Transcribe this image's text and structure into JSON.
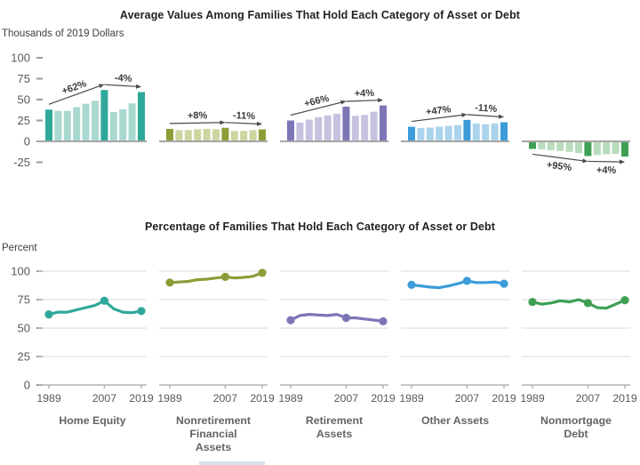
{
  "chart_data": [
    {
      "type": "bar",
      "panel": "top",
      "title": "Average Values Among Families That Hold Each Category of Asset or Debt",
      "unit_label": "Thousands of 2019 Dollars",
      "y_ticks": [
        100,
        75,
        50,
        25,
        0,
        -25
      ],
      "ylim": [
        -25,
        100
      ],
      "years": [
        1989,
        1992,
        1995,
        1998,
        2001,
        2004,
        2007,
        2010,
        2013,
        2016,
        2019
      ],
      "highlight_years": [
        1989,
        2007,
        2019
      ],
      "grid": false,
      "groups": [
        {
          "name": "Home Equity",
          "color_dark": "#2fa89a",
          "color_light": "#a9d8d0",
          "values": [
            38,
            36.5,
            36.5,
            41,
            45,
            48.5,
            61.5,
            35,
            38.5,
            45.5,
            59
          ],
          "changes": [
            {
              "from": 1989,
              "to": 2007,
              "label": "+62%"
            },
            {
              "from": 2007,
              "to": 2019,
              "label": "-4%"
            }
          ]
        },
        {
          "name": "Nonretirement Financial Assets",
          "color_dark": "#8e9c38",
          "color_light": "#cdd5a0",
          "values": [
            15,
            13.5,
            13.5,
            14.5,
            15,
            14.5,
            16.2,
            12.5,
            12.5,
            13.5,
            14.4
          ],
          "changes": [
            {
              "from": 1989,
              "to": 2007,
              "label": "+8%"
            },
            {
              "from": 2007,
              "to": 2019,
              "label": "-11%"
            }
          ]
        },
        {
          "name": "Retirement Assets",
          "color_dark": "#7c76b7",
          "color_light": "#c6c3e0",
          "values": [
            25,
            22.5,
            26,
            29,
            31,
            33,
            41.5,
            30.5,
            31.5,
            35.5,
            43
          ],
          "changes": [
            {
              "from": 1989,
              "to": 2007,
              "label": "+66%"
            },
            {
              "from": 2007,
              "to": 2019,
              "label": "+4%"
            }
          ]
        },
        {
          "name": "Other Assets",
          "color_dark": "#3b9cd9",
          "color_light": "#abd4ec",
          "values": [
            17.5,
            16,
            16.5,
            17.5,
            18.5,
            19.5,
            25.7,
            21.5,
            20.5,
            21.5,
            22.9
          ],
          "changes": [
            {
              "from": 1989,
              "to": 2007,
              "label": "+47%"
            },
            {
              "from": 2007,
              "to": 2019,
              "label": "-11%"
            }
          ]
        },
        {
          "name": "Nonmortgage Debt",
          "color_dark": "#3fa055",
          "color_light": "#b8dcbc",
          "values": [
            -9,
            -9.5,
            -10.5,
            -11.5,
            -12.5,
            -14,
            -17.5,
            -16.5,
            -15.5,
            -15,
            -18.2
          ],
          "changes": [
            {
              "from": 1989,
              "to": 2007,
              "label": "+95%"
            },
            {
              "from": 2007,
              "to": 2019,
              "label": "+4%"
            }
          ]
        }
      ]
    },
    {
      "type": "line",
      "panel": "bottom",
      "title": "Percentage of Families That Hold Each Category of Asset or Debt",
      "unit_label": "Percent",
      "y_ticks": [
        100,
        75,
        50,
        25,
        0
      ],
      "ylim": [
        0,
        100
      ],
      "years": [
        1989,
        1992,
        1995,
        1998,
        2001,
        2004,
        2007,
        2010,
        2013,
        2016,
        2019
      ],
      "x_tick_labels": [
        "1989",
        "2007",
        "2019"
      ],
      "dot_years": [
        1989,
        2007,
        2019
      ],
      "grid": true,
      "groups": [
        {
          "name": "Home Equity",
          "label_lines": [
            "Home Equity"
          ],
          "color": "#2fa89a",
          "values": [
            62,
            64,
            64,
            66,
            68,
            70,
            74,
            67,
            64,
            63.5,
            65
          ]
        },
        {
          "name": "Nonretirement Financial Assets",
          "label_lines": [
            "Nonretirement",
            "Financial",
            "Assets"
          ],
          "color": "#8e9c38",
          "values": [
            90,
            90.5,
            91,
            92.5,
            93,
            94,
            95,
            94,
            94.5,
            95.5,
            98.5
          ]
        },
        {
          "name": "Retirement Assets",
          "label_lines": [
            "Retirement",
            "Assets"
          ],
          "color": "#7c76b7",
          "values": [
            57,
            61,
            62,
            61.5,
            61,
            62,
            59,
            59,
            58,
            57,
            56
          ]
        },
        {
          "name": "Other Assets",
          "label_lines": [
            "Other Assets"
          ],
          "color": "#3b9cd9",
          "values": [
            88,
            87,
            86,
            85.5,
            87,
            89,
            91.5,
            90,
            90,
            90.5,
            89
          ]
        },
        {
          "name": "Nonmortgage Debt",
          "label_lines": [
            "Nonmortgage",
            "Debt"
          ],
          "color": "#3fa055",
          "values": [
            73,
            71,
            72,
            74,
            73,
            75,
            72,
            68,
            67.5,
            71,
            74.5
          ]
        }
      ]
    }
  ]
}
